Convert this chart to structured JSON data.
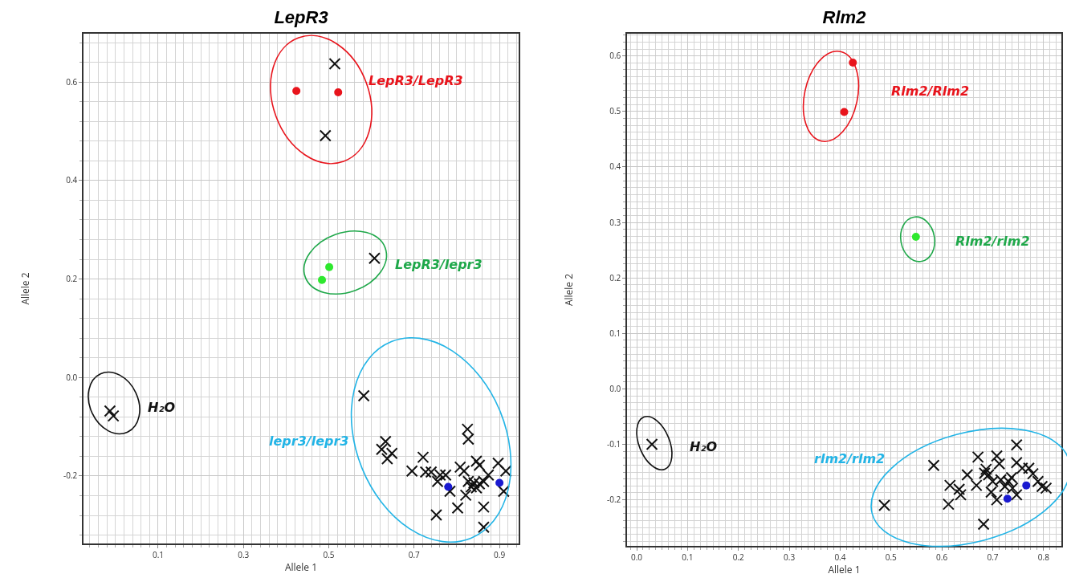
{
  "chart_data": [
    {
      "type": "scatter",
      "title": "LepR3",
      "xlabel": "Allele 1",
      "ylabel": "Allele 2",
      "xlim": [
        -0.075,
        0.945
      ],
      "ylim": [
        -0.337,
        0.698
      ],
      "xticks": [
        0.1,
        0.3,
        0.5,
        0.7,
        0.9
      ],
      "yticks": [
        -0.2,
        {
          "value": 0,
          "label": "0.0"
        },
        0.2,
        0.4,
        0.6
      ],
      "grid": true,
      "series": [
        {
          "color": "#111111",
          "marker": "cross",
          "x": [
            0.514,
            0.492,
            0.607,
            -0.013,
            -0.005,
            0.582,
            0.633,
            0.624,
            0.648,
            0.637,
            0.695,
            0.721,
            0.727,
            0.74,
            0.761,
            0.755,
            0.774,
            0.784,
            0.825,
            0.827,
            0.808,
            0.817,
            0.846,
            0.853,
            0.827,
            0.84,
            0.853,
            0.863,
            0.834,
            0.846,
            0.821,
            0.874,
            0.897,
            0.915,
            0.91,
            0.802,
            0.863,
            0.752,
            0.863
          ],
          "values": [
            0.637,
            0.491,
            0.242,
            -0.068,
            -0.078,
            -0.037,
            -0.13,
            -0.146,
            -0.154,
            -0.165,
            -0.19,
            -0.162,
            -0.192,
            -0.192,
            -0.198,
            -0.211,
            -0.198,
            -0.231,
            -0.105,
            -0.125,
            -0.182,
            -0.19,
            -0.17,
            -0.178,
            -0.211,
            -0.214,
            -0.216,
            -0.211,
            -0.222,
            -0.224,
            -0.239,
            -0.198,
            -0.174,
            -0.19,
            -0.231,
            -0.265,
            -0.263,
            -0.279,
            -0.304
          ]
        },
        {
          "color": "#e8141c",
          "marker": "circle",
          "x": [
            0.424,
            0.522
          ],
          "values": [
            0.582,
            0.579
          ]
        },
        {
          "color": "#2ee82e",
          "marker": "circle",
          "x": [
            0.501,
            0.484
          ],
          "values": [
            0.224,
            0.198
          ]
        },
        {
          "color": "#1a1ad0",
          "marker": "circle",
          "x": [
            0.78,
            0.9
          ],
          "values": [
            -0.222,
            -0.214
          ]
        }
      ],
      "annotations": [
        "LepR3/LepR3",
        "LepR3/lepr3",
        "H₂O",
        "lepr3/lepr3"
      ]
    },
    {
      "type": "scatter",
      "title": "Rlm2",
      "xlabel": "Allele 1",
      "ylabel": "Allele 2",
      "xlim": [
        -0.019,
        0.835
      ],
      "ylim": [
        -0.283,
        0.64
      ],
      "xticks": [
        {
          "value": 0,
          "label": "0.0"
        },
        0.1,
        0.2,
        0.3,
        0.4,
        0.5,
        0.6,
        0.7,
        0.8
      ],
      "yticks": [
        -0.2,
        -0.1,
        {
          "value": 0,
          "label": "0.0"
        },
        0.1,
        0.2,
        0.3,
        0.4,
        0.5,
        0.6
      ],
      "grid": true,
      "series": [
        {
          "color": "#111111",
          "marker": "cross",
          "x": [
            0.03,
            0.487,
            0.584,
            0.616,
            0.613,
            0.637,
            0.634,
            0.65,
            0.668,
            0.671,
            0.682,
            0.687,
            0.692,
            0.7,
            0.708,
            0.713,
            0.708,
            0.716,
            0.724,
            0.731,
            0.737,
            0.739,
            0.747,
            0.747,
            0.758,
            0.771,
            0.779,
            0.789,
            0.797,
            0.805,
            0.747,
            0.697,
            0.684
          ],
          "values": [
            -0.1,
            -0.21,
            -0.138,
            -0.174,
            -0.208,
            -0.191,
            -0.181,
            -0.155,
            -0.174,
            -0.123,
            -0.244,
            -0.145,
            -0.155,
            -0.167,
            -0.121,
            -0.135,
            -0.2,
            -0.164,
            -0.176,
            -0.167,
            -0.16,
            -0.179,
            -0.101,
            -0.133,
            -0.143,
            -0.143,
            -0.153,
            -0.167,
            -0.176,
            -0.179,
            -0.191,
            -0.186,
            -0.152
          ]
        },
        {
          "color": "#e8141c",
          "marker": "circle",
          "x": [
            0.425,
            0.408
          ],
          "values": [
            0.588,
            0.499
          ]
        },
        {
          "color": "#2ee82e",
          "marker": "circle",
          "x": [
            0.549
          ],
          "values": [
            0.274
          ]
        },
        {
          "color": "#1a1ad0",
          "marker": "circle",
          "x": [
            0.729,
            0.766
          ],
          "values": [
            -0.198,
            -0.174
          ]
        }
      ],
      "annotations": [
        "Rlm2/Rlm2",
        "Rlm2/rlm2",
        "H₂O",
        "rlm2/rlm2"
      ]
    }
  ]
}
